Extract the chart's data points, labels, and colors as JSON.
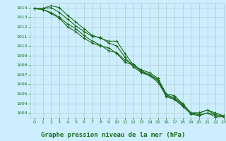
{
  "title": "Graphe pression niveau de la mer (hPa)",
  "bg_color": "#cceeff",
  "grid_color": "#b0cccc",
  "line_color": "#1a6b1a",
  "tick_color": "#1a6b1a",
  "xlim": [
    -0.5,
    23
  ],
  "ylim": [
    1002.5,
    1014.5
  ],
  "yticks": [
    1003,
    1004,
    1005,
    1006,
    1007,
    1008,
    1009,
    1010,
    1011,
    1012,
    1013,
    1014
  ],
  "xticks": [
    0,
    1,
    2,
    3,
    4,
    5,
    6,
    7,
    8,
    9,
    10,
    11,
    12,
    13,
    14,
    15,
    16,
    17,
    18,
    19,
    20,
    21,
    22,
    23
  ],
  "series": [
    [
      1013.9,
      1013.9,
      1014.2,
      1014.0,
      1013.2,
      1012.5,
      1011.8,
      1011.1,
      1010.8,
      1010.5,
      1010.5,
      1009.2,
      1008.0,
      1007.5,
      1007.2,
      1006.6,
      1005.0,
      1004.8,
      1004.0,
      1003.0,
      1003.0,
      1003.3,
      1002.8,
      1002.7
    ],
    [
      1013.9,
      1013.9,
      1014.0,
      1013.5,
      1012.8,
      1012.1,
      1011.5,
      1011.0,
      1010.9,
      1010.3,
      1010.0,
      1008.8,
      1007.8,
      1007.2,
      1006.9,
      1006.2,
      1004.8,
      1004.5,
      1003.8,
      1003.0,
      1002.8,
      1003.0,
      1002.8,
      1002.7
    ],
    [
      1013.9,
      1013.8,
      1013.5,
      1013.0,
      1012.3,
      1011.8,
      1011.1,
      1010.5,
      1010.1,
      1009.5,
      1009.3,
      1008.5,
      1008.1,
      1007.4,
      1007.0,
      1006.5,
      1004.9,
      1004.6,
      1003.9,
      1003.0,
      1003.0,
      1003.3,
      1003.0,
      1002.7
    ],
    [
      1013.9,
      1013.8,
      1013.4,
      1012.9,
      1012.0,
      1011.5,
      1010.8,
      1010.3,
      1010.0,
      1009.8,
      1009.2,
      1008.3,
      1008.0,
      1007.3,
      1006.9,
      1006.4,
      1004.7,
      1004.4,
      1003.7,
      1002.9,
      1002.7,
      1003.0,
      1002.6,
      1002.6
    ]
  ]
}
